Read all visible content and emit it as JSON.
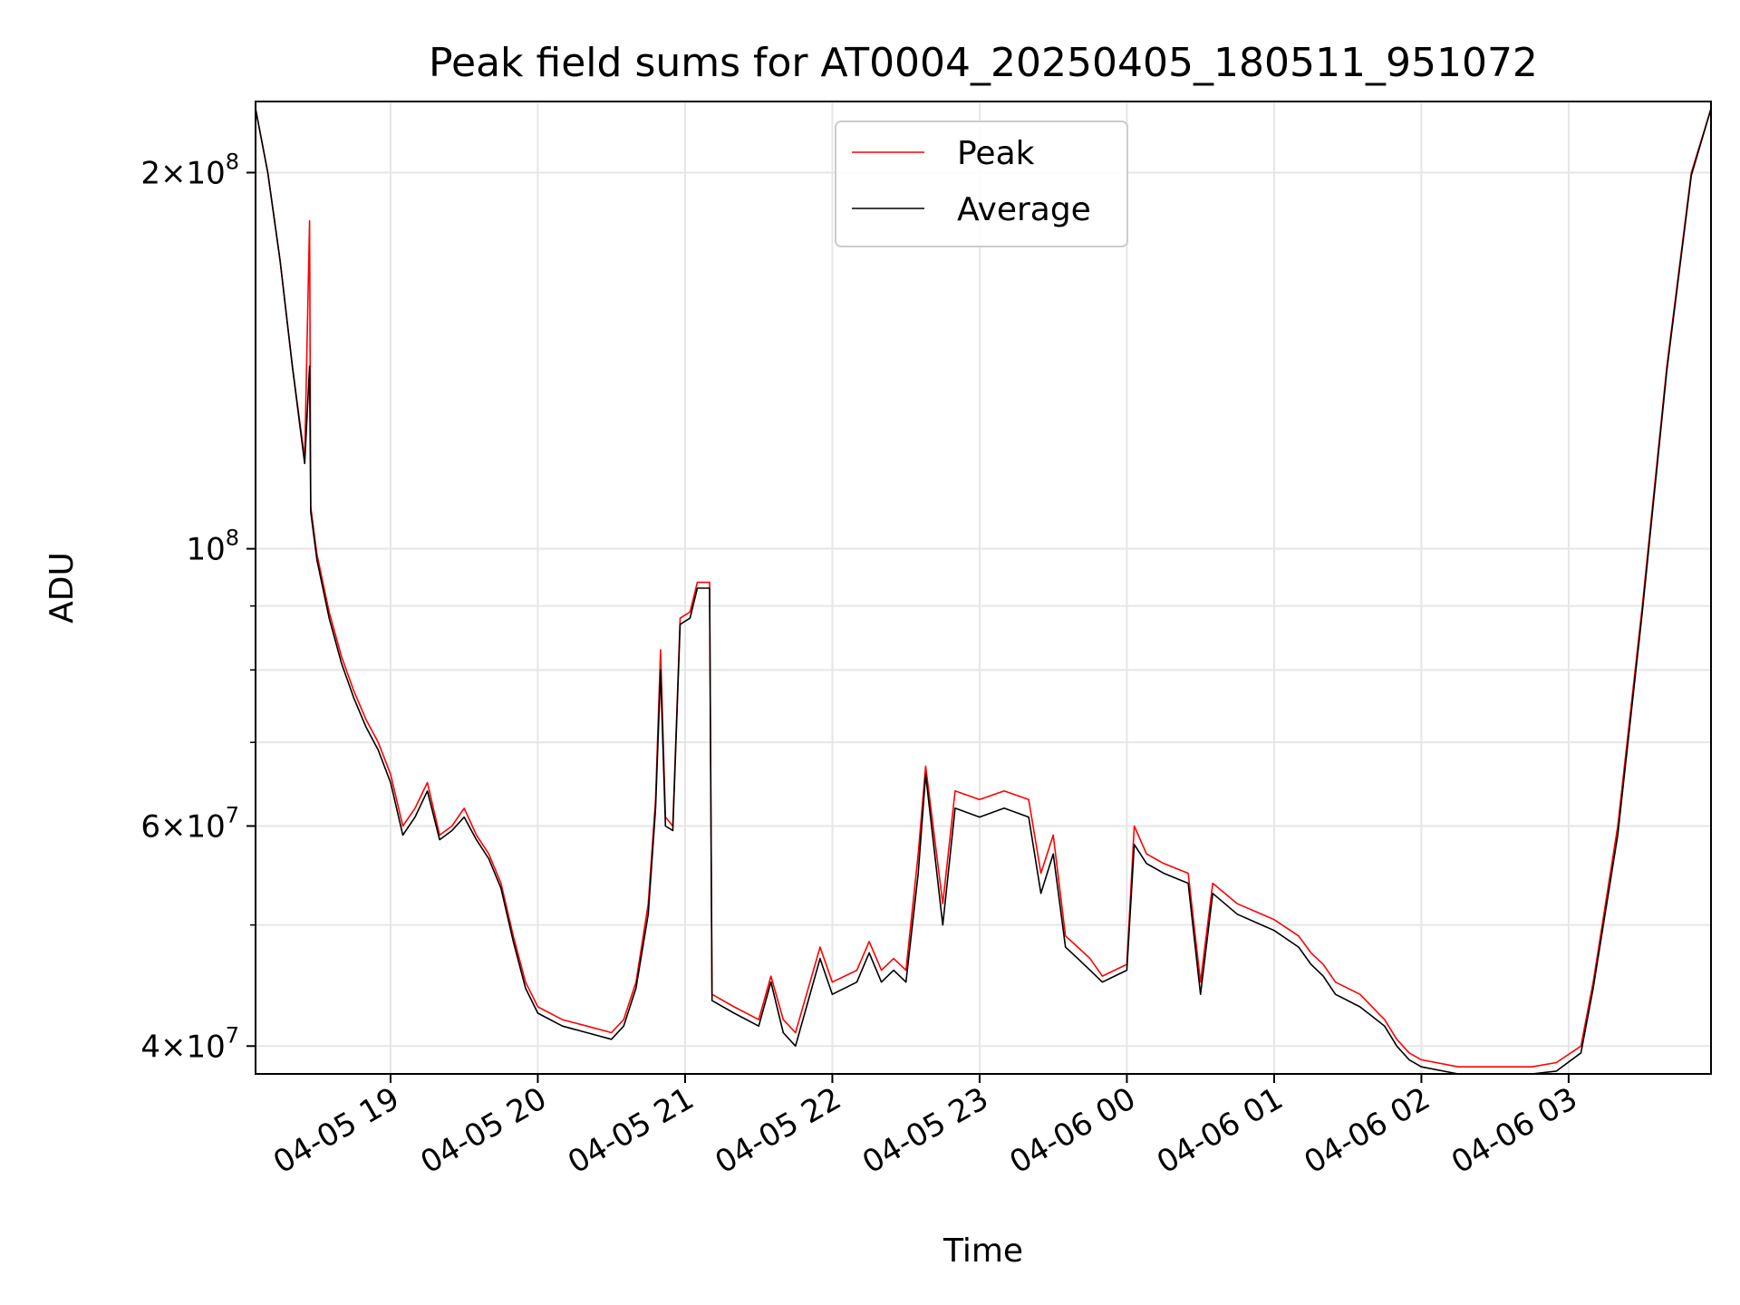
{
  "chart_data": {
    "type": "line",
    "title": "Peak field sums for AT0004_20250405_180511_951072",
    "xlabel": "Time",
    "ylabel": "ADU",
    "yscale": "log",
    "xlim": [
      "2025-04-05 18:05",
      "2025-04-06 03:58"
    ],
    "ylim": [
      38000000,
      228000000
    ],
    "grid": true,
    "legend_position": "upper center",
    "x_ticks": [
      {
        "value": "2025-04-05 19:00",
        "label": "04-05 19"
      },
      {
        "value": "2025-04-05 20:00",
        "label": "04-05 20"
      },
      {
        "value": "2025-04-05 21:00",
        "label": "04-05 21"
      },
      {
        "value": "2025-04-05 22:00",
        "label": "04-05 22"
      },
      {
        "value": "2025-04-05 23:00",
        "label": "04-05 23"
      },
      {
        "value": "2025-04-06 00:00",
        "label": "04-06 00"
      },
      {
        "value": "2025-04-06 01:00",
        "label": "04-06 01"
      },
      {
        "value": "2025-04-06 02:00",
        "label": "04-06 02"
      },
      {
        "value": "2025-04-06 03:00",
        "label": "04-06 03"
      }
    ],
    "y_ticks": [
      {
        "value": 40000000,
        "mant": "4",
        "exp": "7"
      },
      {
        "value": 60000000,
        "mant": "6",
        "exp": "7"
      },
      {
        "value": 100000000,
        "mant": "",
        "exp": "8"
      },
      {
        "value": 200000000,
        "mant": "2",
        "exp": "8"
      }
    ],
    "y_minor_ticks": [
      50000000,
      70000000,
      80000000,
      90000000
    ],
    "series": [
      {
        "name": "Peak",
        "color": "#ff0000",
        "points": [
          [
            "2025-04-05 18:05",
            225000000
          ],
          [
            "2025-04-05 18:10",
            200000000
          ],
          [
            "2025-04-05 18:15",
            170000000
          ],
          [
            "2025-04-05 18:20",
            140000000
          ],
          [
            "2025-04-05 18:25",
            118000000
          ],
          [
            "2025-04-05 18:27",
            183000000
          ],
          [
            "2025-04-05 18:27.5",
            108000000
          ],
          [
            "2025-04-05 18:30",
            99000000
          ],
          [
            "2025-04-05 18:35",
            89000000
          ],
          [
            "2025-04-05 18:40",
            82000000
          ],
          [
            "2025-04-05 18:45",
            77000000
          ],
          [
            "2025-04-05 18:50",
            73000000
          ],
          [
            "2025-04-05 18:55",
            70000000
          ],
          [
            "2025-04-05 19:00",
            66000000
          ],
          [
            "2025-04-05 19:05",
            60000000
          ],
          [
            "2025-04-05 19:10",
            62000000
          ],
          [
            "2025-04-05 19:15",
            65000000
          ],
          [
            "2025-04-05 19:20",
            59000000
          ],
          [
            "2025-04-05 19:25",
            60000000
          ],
          [
            "2025-04-05 19:30",
            62000000
          ],
          [
            "2025-04-05 19:35",
            59000000
          ],
          [
            "2025-04-05 19:40",
            57000000
          ],
          [
            "2025-04-05 19:45",
            54000000
          ],
          [
            "2025-04-05 19:50",
            49000000
          ],
          [
            "2025-04-05 19:55",
            45000000
          ],
          [
            "2025-04-05 20:00",
            43000000
          ],
          [
            "2025-04-05 20:10",
            42000000
          ],
          [
            "2025-04-05 20:20",
            41500000
          ],
          [
            "2025-04-05 20:30",
            41000000
          ],
          [
            "2025-04-05 20:35",
            42000000
          ],
          [
            "2025-04-05 20:40",
            45000000
          ],
          [
            "2025-04-05 20:45",
            52000000
          ],
          [
            "2025-04-05 20:48",
            63000000
          ],
          [
            "2025-04-05 20:50",
            83000000
          ],
          [
            "2025-04-05 20:52",
            61000000
          ],
          [
            "2025-04-05 20:55",
            60000000
          ],
          [
            "2025-04-05 20:58",
            88000000
          ],
          [
            "2025-04-05 21:02",
            89000000
          ],
          [
            "2025-04-05 21:05",
            94000000
          ],
          [
            "2025-04-05 21:10",
            94000000
          ],
          [
            "2025-04-05 21:11",
            44000000
          ],
          [
            "2025-04-05 21:20",
            43000000
          ],
          [
            "2025-04-05 21:30",
            42000000
          ],
          [
            "2025-04-05 21:35",
            45500000
          ],
          [
            "2025-04-05 21:40",
            42000000
          ],
          [
            "2025-04-05 21:45",
            41000000
          ],
          [
            "2025-04-05 21:55",
            48000000
          ],
          [
            "2025-04-05 22:00",
            45000000
          ],
          [
            "2025-04-05 22:10",
            46000000
          ],
          [
            "2025-04-05 22:15",
            48500000
          ],
          [
            "2025-04-05 22:20",
            46000000
          ],
          [
            "2025-04-05 22:25",
            47000000
          ],
          [
            "2025-04-05 22:30",
            46000000
          ],
          [
            "2025-04-05 22:35",
            57000000
          ],
          [
            "2025-04-05 22:38",
            67000000
          ],
          [
            "2025-04-05 22:45",
            52000000
          ],
          [
            "2025-04-05 22:50",
            64000000
          ],
          [
            "2025-04-05 23:00",
            63000000
          ],
          [
            "2025-04-05 23:10",
            64000000
          ],
          [
            "2025-04-05 23:20",
            63000000
          ],
          [
            "2025-04-05 23:25",
            55000000
          ],
          [
            "2025-04-05 23:30",
            59000000
          ],
          [
            "2025-04-05 23:35",
            49000000
          ],
          [
            "2025-04-05 23:40",
            48000000
          ],
          [
            "2025-04-05 23:45",
            47000000
          ],
          [
            "2025-04-05 23:50",
            45500000
          ],
          [
            "2025-04-05 23:55",
            46000000
          ],
          [
            "2025-04-06 00:00",
            46500000
          ],
          [
            "2025-04-06 00:03",
            60000000
          ],
          [
            "2025-04-06 00:08",
            57000000
          ],
          [
            "2025-04-06 00:15",
            56000000
          ],
          [
            "2025-04-06 00:25",
            55000000
          ],
          [
            "2025-04-06 00:30",
            45000000
          ],
          [
            "2025-04-06 00:35",
            54000000
          ],
          [
            "2025-04-06 00:45",
            52000000
          ],
          [
            "2025-04-06 01:00",
            50500000
          ],
          [
            "2025-04-06 01:10",
            49000000
          ],
          [
            "2025-04-06 01:15",
            47500000
          ],
          [
            "2025-04-06 01:20",
            46500000
          ],
          [
            "2025-04-06 01:25",
            45000000
          ],
          [
            "2025-04-06 01:35",
            44000000
          ],
          [
            "2025-04-06 01:45",
            42000000
          ],
          [
            "2025-04-06 01:50",
            40500000
          ],
          [
            "2025-04-06 01:55",
            39500000
          ],
          [
            "2025-04-06 02:00",
            39000000
          ],
          [
            "2025-04-06 02:15",
            38500000
          ],
          [
            "2025-04-06 02:30",
            38500000
          ],
          [
            "2025-04-06 02:45",
            38500000
          ],
          [
            "2025-04-06 02:55",
            38800000
          ],
          [
            "2025-04-06 03:05",
            40000000
          ],
          [
            "2025-04-06 03:10",
            45000000
          ],
          [
            "2025-04-06 03:20",
            60000000
          ],
          [
            "2025-04-06 03:30",
            90000000
          ],
          [
            "2025-04-06 03:40",
            140000000
          ],
          [
            "2025-04-06 03:50",
            200000000
          ],
          [
            "2025-04-06 03:58",
            225000000
          ]
        ]
      },
      {
        "name": "Average",
        "color": "#000000",
        "points": [
          [
            "2025-04-05 18:05",
            225000000
          ],
          [
            "2025-04-05 18:10",
            200000000
          ],
          [
            "2025-04-05 18:15",
            170000000
          ],
          [
            "2025-04-05 18:20",
            140000000
          ],
          [
            "2025-04-05 18:25",
            117000000
          ],
          [
            "2025-04-05 18:27",
            140000000
          ],
          [
            "2025-04-05 18:27.5",
            107000000
          ],
          [
            "2025-04-05 18:30",
            98000000
          ],
          [
            "2025-04-05 18:35",
            88000000
          ],
          [
            "2025-04-05 18:40",
            81000000
          ],
          [
            "2025-04-05 18:45",
            76000000
          ],
          [
            "2025-04-05 18:50",
            72000000
          ],
          [
            "2025-04-05 18:55",
            69000000
          ],
          [
            "2025-04-05 19:00",
            65000000
          ],
          [
            "2025-04-05 19:05",
            59000000
          ],
          [
            "2025-04-05 19:10",
            61000000
          ],
          [
            "2025-04-05 19:15",
            64000000
          ],
          [
            "2025-04-05 19:20",
            58500000
          ],
          [
            "2025-04-05 19:25",
            59500000
          ],
          [
            "2025-04-05 19:30",
            61000000
          ],
          [
            "2025-04-05 19:35",
            58500000
          ],
          [
            "2025-04-05 19:40",
            56500000
          ],
          [
            "2025-04-05 19:45",
            53500000
          ],
          [
            "2025-04-05 19:50",
            48500000
          ],
          [
            "2025-04-05 19:55",
            44500000
          ],
          [
            "2025-04-05 20:00",
            42500000
          ],
          [
            "2025-04-05 20:10",
            41500000
          ],
          [
            "2025-04-05 20:20",
            41000000
          ],
          [
            "2025-04-05 20:30",
            40500000
          ],
          [
            "2025-04-05 20:35",
            41500000
          ],
          [
            "2025-04-05 20:40",
            44500000
          ],
          [
            "2025-04-05 20:45",
            51000000
          ],
          [
            "2025-04-05 20:48",
            62000000
          ],
          [
            "2025-04-05 20:50",
            80000000
          ],
          [
            "2025-04-05 20:52",
            60000000
          ],
          [
            "2025-04-05 20:55",
            59500000
          ],
          [
            "2025-04-05 20:58",
            87000000
          ],
          [
            "2025-04-05 21:02",
            88000000
          ],
          [
            "2025-04-05 21:05",
            93000000
          ],
          [
            "2025-04-05 21:10",
            93000000
          ],
          [
            "2025-04-05 21:11",
            43500000
          ],
          [
            "2025-04-05 21:20",
            42500000
          ],
          [
            "2025-04-05 21:30",
            41500000
          ],
          [
            "2025-04-05 21:35",
            45000000
          ],
          [
            "2025-04-05 21:40",
            41000000
          ],
          [
            "2025-04-05 21:45",
            40000000
          ],
          [
            "2025-04-05 21:55",
            47000000
          ],
          [
            "2025-04-05 22:00",
            44000000
          ],
          [
            "2025-04-05 22:10",
            45000000
          ],
          [
            "2025-04-05 22:15",
            47500000
          ],
          [
            "2025-04-05 22:20",
            45000000
          ],
          [
            "2025-04-05 22:25",
            46000000
          ],
          [
            "2025-04-05 22:30",
            45000000
          ],
          [
            "2025-04-05 22:35",
            55000000
          ],
          [
            "2025-04-05 22:38",
            66000000
          ],
          [
            "2025-04-05 22:45",
            50000000
          ],
          [
            "2025-04-05 22:50",
            62000000
          ],
          [
            "2025-04-05 23:00",
            61000000
          ],
          [
            "2025-04-05 23:10",
            62000000
          ],
          [
            "2025-04-05 23:20",
            61000000
          ],
          [
            "2025-04-05 23:25",
            53000000
          ],
          [
            "2025-04-05 23:30",
            57000000
          ],
          [
            "2025-04-05 23:35",
            48000000
          ],
          [
            "2025-04-05 23:40",
            47000000
          ],
          [
            "2025-04-05 23:45",
            46000000
          ],
          [
            "2025-04-05 23:50",
            45000000
          ],
          [
            "2025-04-05 23:55",
            45500000
          ],
          [
            "2025-04-06 00:00",
            46000000
          ],
          [
            "2025-04-06 00:03",
            58000000
          ],
          [
            "2025-04-06 00:08",
            56000000
          ],
          [
            "2025-04-06 00:15",
            55000000
          ],
          [
            "2025-04-06 00:25",
            54000000
          ],
          [
            "2025-04-06 00:30",
            44000000
          ],
          [
            "2025-04-06 00:35",
            53000000
          ],
          [
            "2025-04-06 00:45",
            51000000
          ],
          [
            "2025-04-06 01:00",
            49500000
          ],
          [
            "2025-04-06 01:10",
            48000000
          ],
          [
            "2025-04-06 01:15",
            46500000
          ],
          [
            "2025-04-06 01:20",
            45500000
          ],
          [
            "2025-04-06 01:25",
            44000000
          ],
          [
            "2025-04-06 01:35",
            43000000
          ],
          [
            "2025-04-06 01:45",
            41500000
          ],
          [
            "2025-04-06 01:50",
            40000000
          ],
          [
            "2025-04-06 01:55",
            39000000
          ],
          [
            "2025-04-06 02:00",
            38500000
          ],
          [
            "2025-04-06 02:15",
            38000000
          ],
          [
            "2025-04-06 02:30",
            38000000
          ],
          [
            "2025-04-06 02:45",
            38000000
          ],
          [
            "2025-04-06 02:55",
            38200000
          ],
          [
            "2025-04-06 03:05",
            39500000
          ],
          [
            "2025-04-06 03:10",
            44500000
          ],
          [
            "2025-04-06 03:20",
            59000000
          ],
          [
            "2025-04-06 03:30",
            89000000
          ],
          [
            "2025-04-06 03:40",
            139000000
          ],
          [
            "2025-04-06 03:50",
            199000000
          ],
          [
            "2025-04-06 03:58",
            225000000
          ]
        ]
      }
    ]
  }
}
